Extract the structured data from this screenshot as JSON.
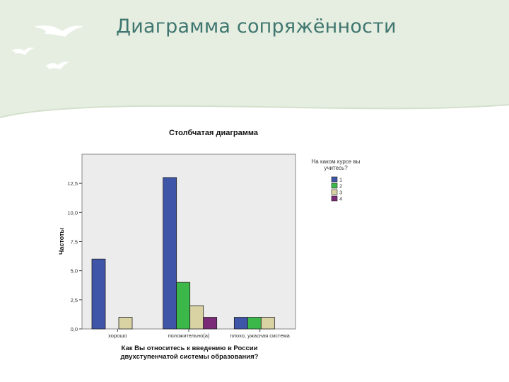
{
  "slide": {
    "title": "Диаграмма сопряжённости",
    "colors": {
      "band": "#e6eee1",
      "band_edge": "#d3e0cc",
      "title": "#3f7670",
      "birds": "#ffffff"
    }
  },
  "chart_data": {
    "type": "bar",
    "title": "Столбчатая диаграмма",
    "xlabel": [
      "Как Вы относитесь к введению в России",
      "двухступенчатой системы образования?"
    ],
    "ylabel": "Частоты",
    "categories": [
      "хорошо",
      "положительно(а)",
      "плохо, ужасная система"
    ],
    "series": [
      {
        "name": "1",
        "color": "#3f55a8",
        "values": [
          6,
          13,
          1
        ]
      },
      {
        "name": "2",
        "color": "#3cb84a",
        "values": [
          0,
          4,
          1
        ]
      },
      {
        "name": "3",
        "color": "#d9d3a4",
        "values": [
          1,
          2,
          1
        ]
      },
      {
        "name": "4",
        "color": "#7b2a78",
        "values": [
          0,
          1,
          0
        ]
      }
    ],
    "ylim": [
      0,
      15
    ],
    "yticks": [
      0,
      2.5,
      5,
      7.5,
      10,
      12.5
    ],
    "ytick_labels": [
      "0,0",
      "2,5",
      "5,0",
      "7,5",
      "10,0",
      "12,5"
    ],
    "legend": {
      "title": [
        "На каком курсе вы",
        "учитесь?"
      ],
      "placement": "right"
    },
    "grid": false,
    "plot_background": "#ececec"
  }
}
